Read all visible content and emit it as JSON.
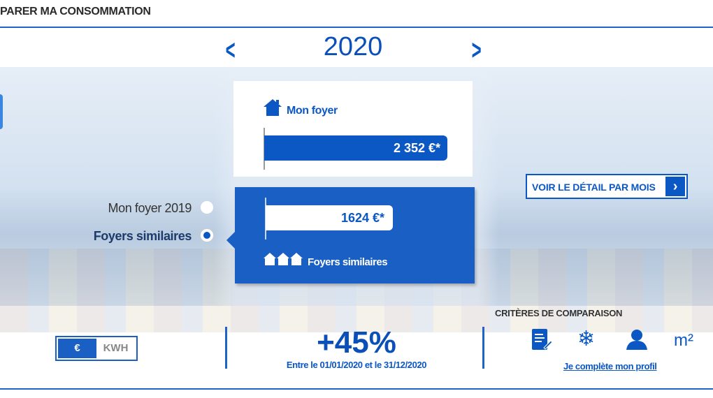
{
  "header": {
    "title": "PARER MA CONSOMMATION"
  },
  "year_nav": {
    "year": "2020",
    "prev_icon": "chevron-left-icon",
    "next_icon": "chevron-right-icon"
  },
  "comparison": {
    "my_home": {
      "label": "Mon foyer",
      "value": "2 352 €*",
      "amount": 2352
    },
    "similar": {
      "label": "Foyers similaires",
      "value": "1624 €*",
      "amount": 1624
    },
    "options": [
      {
        "label": "Mon foyer 2019",
        "selected": false
      },
      {
        "label": "Foyers similaires",
        "selected": true
      }
    ],
    "detail_button": "VOIR LE DÉTAIL PAR MOIS"
  },
  "unit_toggle": {
    "options": [
      "€",
      "KWH"
    ],
    "selected": "€"
  },
  "summary": {
    "percent": "+45%",
    "range": "Entre le 01/01/2020 et le 31/12/2020"
  },
  "criteria": {
    "title": "CRITÈRES DE COMPARAISON",
    "icons": [
      "document-edit-icon",
      "snowflake-icon",
      "person-icon",
      "square-meter-icon"
    ],
    "m2": "m²",
    "link": "Je complète mon profil"
  },
  "colors": {
    "primary": "#0b57c4",
    "card_blue": "#1a5fc4"
  }
}
